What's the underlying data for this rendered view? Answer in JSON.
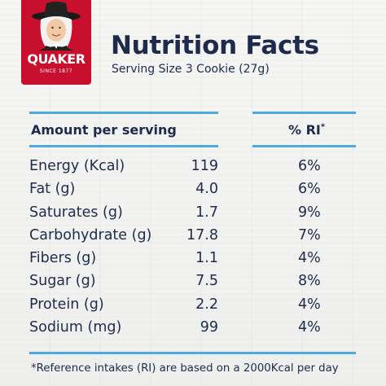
{
  "brand": {
    "name": "QUAKER",
    "since": "SINCE 1877",
    "red": "#c8102e"
  },
  "header": {
    "title": "Nutrition Facts",
    "serving_size": "Serving Size 3 Cookie (27g)"
  },
  "table": {
    "amount_header": "Amount per serving",
    "ri_header": "% RI",
    "ri_marker": "*",
    "rows": [
      {
        "label": "Energy (Kcal)",
        "value": "119",
        "ri": "6%"
      },
      {
        "label": "Fat (g)",
        "value": "4.0",
        "ri": "6%"
      },
      {
        "label": "Saturates (g)",
        "value": "1.7",
        "ri": "9%"
      },
      {
        "label": "Carbohydrate (g)",
        "value": "17.8",
        "ri": "7%"
      },
      {
        "label": "Fibers (g)",
        "value": "1.1",
        "ri": "4%"
      },
      {
        "label": "Sugar (g)",
        "value": "7.5",
        "ri": "8%"
      },
      {
        "label": "Protein (g)",
        "value": "2.2",
        "ri": "4%"
      },
      {
        "label": "Sodium (mg)",
        "value": "99",
        "ri": "4%"
      }
    ]
  },
  "footnote": "*Reference intakes (RI) are based on a 2000Kcal per day",
  "colors": {
    "text": "#1e2b4d",
    "rule": "#4da9e0"
  }
}
